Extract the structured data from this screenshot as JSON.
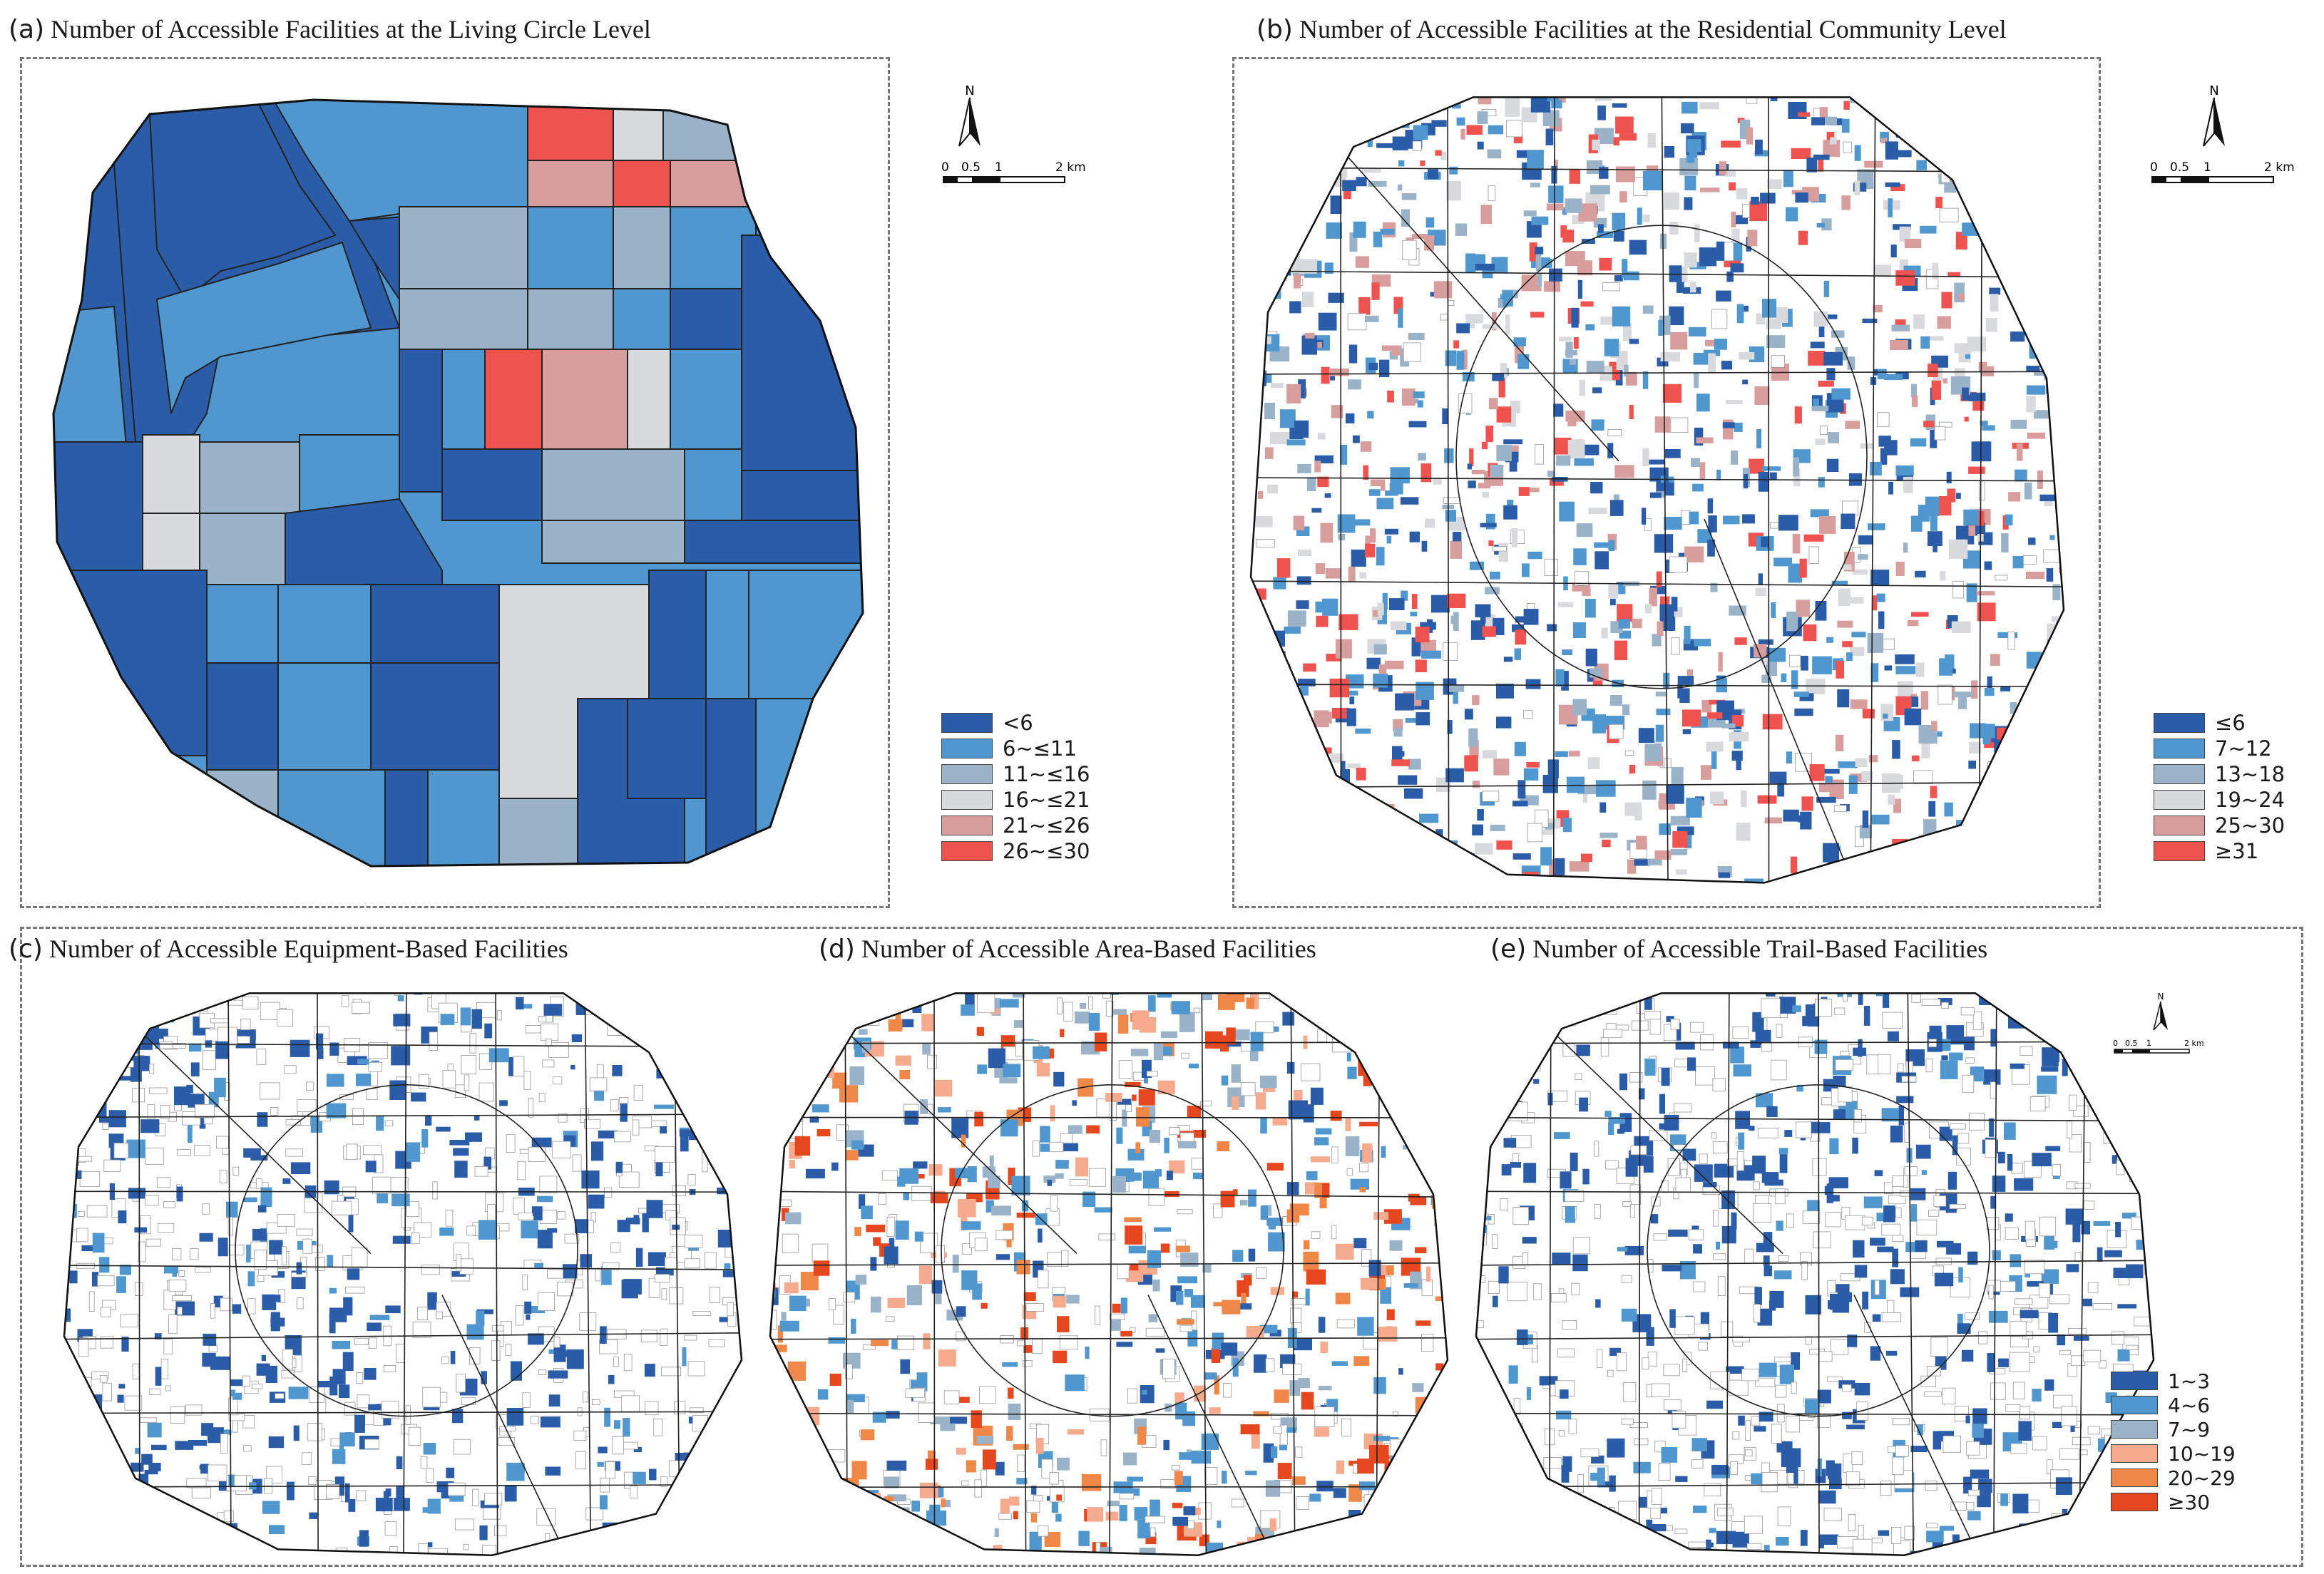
{
  "panels": {
    "a": {
      "letter": "(a)",
      "title": "Number of Accessible Facilities at the Living Circle Level"
    },
    "b": {
      "letter": "(b)",
      "title": "Number of Accessible Facilities at the Residential Community Level"
    },
    "c": {
      "letter": "(c)",
      "title": "Number of Accessible Equipment-Based Facilities"
    },
    "d": {
      "letter": "(d)",
      "title": "Number of Accessible Area-Based Facilities"
    },
    "e": {
      "letter": "(e)",
      "title": "Number of Accessible Trail-Based Facilities"
    }
  },
  "legend_a": {
    "items": [
      {
        "label": "<6",
        "color": "#2b5ca8"
      },
      {
        "label": "6~≤11",
        "color": "#5097cf"
      },
      {
        "label": "11~≤16",
        "color": "#9bb3c9"
      },
      {
        "label": "16~≤21",
        "color": "#d9dadd"
      },
      {
        "label": "21~≤26",
        "color": "#d89e9d"
      },
      {
        "label": "26~≤30",
        "color": "#ef5350"
      }
    ]
  },
  "legend_b": {
    "items": [
      {
        "label": "≤6",
        "color": "#2b5ca8"
      },
      {
        "label": "7~12",
        "color": "#5097cf"
      },
      {
        "label": "13~18",
        "color": "#9bb3c9"
      },
      {
        "label": "19~24",
        "color": "#d9dadd"
      },
      {
        "label": "25~30",
        "color": "#d89e9d"
      },
      {
        "label": "≥31",
        "color": "#ef5350"
      }
    ]
  },
  "legend_cde": {
    "items": [
      {
        "label": "1~3",
        "color": "#2b5ca8"
      },
      {
        "label": "4~6",
        "color": "#5097cf"
      },
      {
        "label": "7~9",
        "color": "#9bb3c9"
      },
      {
        "label": "10~19",
        "color": "#f6ab8e"
      },
      {
        "label": "20~29",
        "color": "#ef8748"
      },
      {
        "label": "≥30",
        "color": "#e5471e"
      }
    ]
  },
  "north": {
    "label": "N"
  },
  "scale": {
    "t0": "0",
    "t1": "0.5",
    "t2": "1",
    "t3": "2 km"
  },
  "colors": {
    "line": "#222222",
    "fill_white": "#ffffff"
  }
}
